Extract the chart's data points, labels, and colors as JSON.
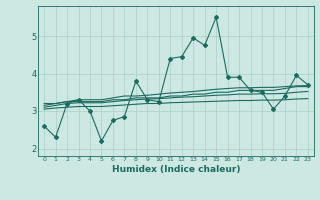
{
  "xlabel": "Humidex (Indice chaleur)",
  "background_color": "#cde8e2",
  "grid_color": "#a8cfc8",
  "line_color": "#1a6b60",
  "xlim": [
    -0.5,
    23.5
  ],
  "ylim": [
    1.8,
    5.8
  ],
  "yticks": [
    2,
    3,
    4,
    5
  ],
  "xticks": [
    0,
    1,
    2,
    3,
    4,
    5,
    6,
    7,
    8,
    9,
    10,
    11,
    12,
    13,
    14,
    15,
    16,
    17,
    18,
    19,
    20,
    21,
    22,
    23
  ],
  "series": [
    [
      2.6,
      2.3,
      3.2,
      3.3,
      3.0,
      2.2,
      2.75,
      2.85,
      3.8,
      3.3,
      3.25,
      4.4,
      4.45,
      4.95,
      4.75,
      5.5,
      3.9,
      3.9,
      3.55,
      3.5,
      3.05,
      3.4,
      3.95,
      3.7
    ],
    [
      3.2,
      3.2,
      3.25,
      3.25,
      3.25,
      3.25,
      3.3,
      3.3,
      3.35,
      3.35,
      3.35,
      3.4,
      3.4,
      3.45,
      3.45,
      3.5,
      3.5,
      3.55,
      3.55,
      3.55,
      3.55,
      3.6,
      3.65,
      3.65
    ],
    [
      3.15,
      3.2,
      3.25,
      3.3,
      3.3,
      3.3,
      3.35,
      3.4,
      3.4,
      3.42,
      3.45,
      3.48,
      3.5,
      3.52,
      3.55,
      3.58,
      3.6,
      3.62,
      3.62,
      3.63,
      3.63,
      3.65,
      3.67,
      3.68
    ],
    [
      3.1,
      3.15,
      3.2,
      3.22,
      3.22,
      3.22,
      3.25,
      3.28,
      3.3,
      3.32,
      3.33,
      3.35,
      3.37,
      3.38,
      3.4,
      3.42,
      3.43,
      3.45,
      3.45,
      3.46,
      3.46,
      3.47,
      3.5,
      3.52
    ],
    [
      3.05,
      3.08,
      3.1,
      3.12,
      3.12,
      3.12,
      3.14,
      3.16,
      3.18,
      3.2,
      3.2,
      3.22,
      3.23,
      3.24,
      3.25,
      3.26,
      3.27,
      3.28,
      3.28,
      3.29,
      3.29,
      3.3,
      3.32,
      3.33
    ]
  ]
}
